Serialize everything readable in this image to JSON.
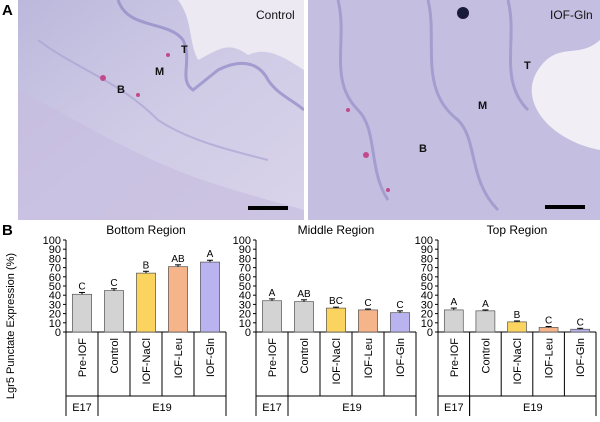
{
  "panel_a": {
    "label": "A",
    "images": [
      {
        "label": "Control",
        "regions": [
          "T",
          "M",
          "B"
        ]
      },
      {
        "label": "IOF-Gln",
        "regions": [
          "T",
          "M",
          "B"
        ]
      }
    ]
  },
  "panel_b": {
    "label": "B"
  },
  "chart_data": [
    {
      "type": "bar",
      "title": "Bottom Region",
      "ylabel": "Lgr5 Punctate Expression (%)",
      "ylim": [
        0,
        100
      ],
      "yticks": [
        0,
        10,
        20,
        30,
        40,
        50,
        60,
        70,
        80,
        90,
        100
      ],
      "categories": [
        "Pre-IOF",
        "Control",
        "IOF-NaCl",
        "IOF-Leu",
        "IOF-Gln"
      ],
      "values": [
        41,
        45,
        64,
        71,
        76
      ],
      "errors": [
        2,
        2,
        2,
        2,
        2
      ],
      "letters": [
        "C",
        "C",
        "B",
        "AB",
        "A"
      ],
      "colors": [
        "#d3d3d3",
        "#d3d3d3",
        "#fbd35f",
        "#f6b48a",
        "#b9b4ef"
      ],
      "groups": [
        {
          "label": "E17",
          "span": [
            0,
            0
          ]
        },
        {
          "label": "E19",
          "span": [
            1,
            4
          ]
        }
      ]
    },
    {
      "type": "bar",
      "title": "Middle Region",
      "ylim": [
        0,
        100
      ],
      "yticks": [
        0,
        10,
        20,
        30,
        40,
        50,
        60,
        70,
        80,
        90,
        100
      ],
      "categories": [
        "Pre-IOF",
        "Control",
        "IOF-NaCl",
        "IOF-Leu",
        "IOF-Gln"
      ],
      "values": [
        34,
        33,
        26,
        24,
        21
      ],
      "errors": [
        2,
        2,
        1,
        1,
        2
      ],
      "letters": [
        "A",
        "AB",
        "BC",
        "C",
        "C"
      ],
      "colors": [
        "#d3d3d3",
        "#d3d3d3",
        "#fbd35f",
        "#f6b48a",
        "#b9b4ef"
      ],
      "groups": [
        {
          "label": "E17",
          "span": [
            0,
            0
          ]
        },
        {
          "label": "E19",
          "span": [
            1,
            4
          ]
        }
      ]
    },
    {
      "type": "bar",
      "title": "Top Region",
      "ylim": [
        0,
        100
      ],
      "yticks": [
        0,
        10,
        20,
        30,
        40,
        50,
        60,
        70,
        80,
        90,
        100
      ],
      "categories": [
        "Pre-IOF",
        "Control",
        "IOF-NaCl",
        "IOF-Leu",
        "IOF-Gln"
      ],
      "values": [
        24,
        23,
        11,
        5,
        3
      ],
      "errors": [
        2,
        1,
        1,
        1,
        1
      ],
      "letters": [
        "A",
        "A",
        "B",
        "C",
        "C"
      ],
      "colors": [
        "#d3d3d3",
        "#d3d3d3",
        "#fbd35f",
        "#f6b48a",
        "#b9b4ef"
      ],
      "groups": [
        {
          "label": "E17",
          "span": [
            0,
            0
          ]
        },
        {
          "label": "E19",
          "span": [
            1,
            4
          ]
        }
      ]
    }
  ]
}
